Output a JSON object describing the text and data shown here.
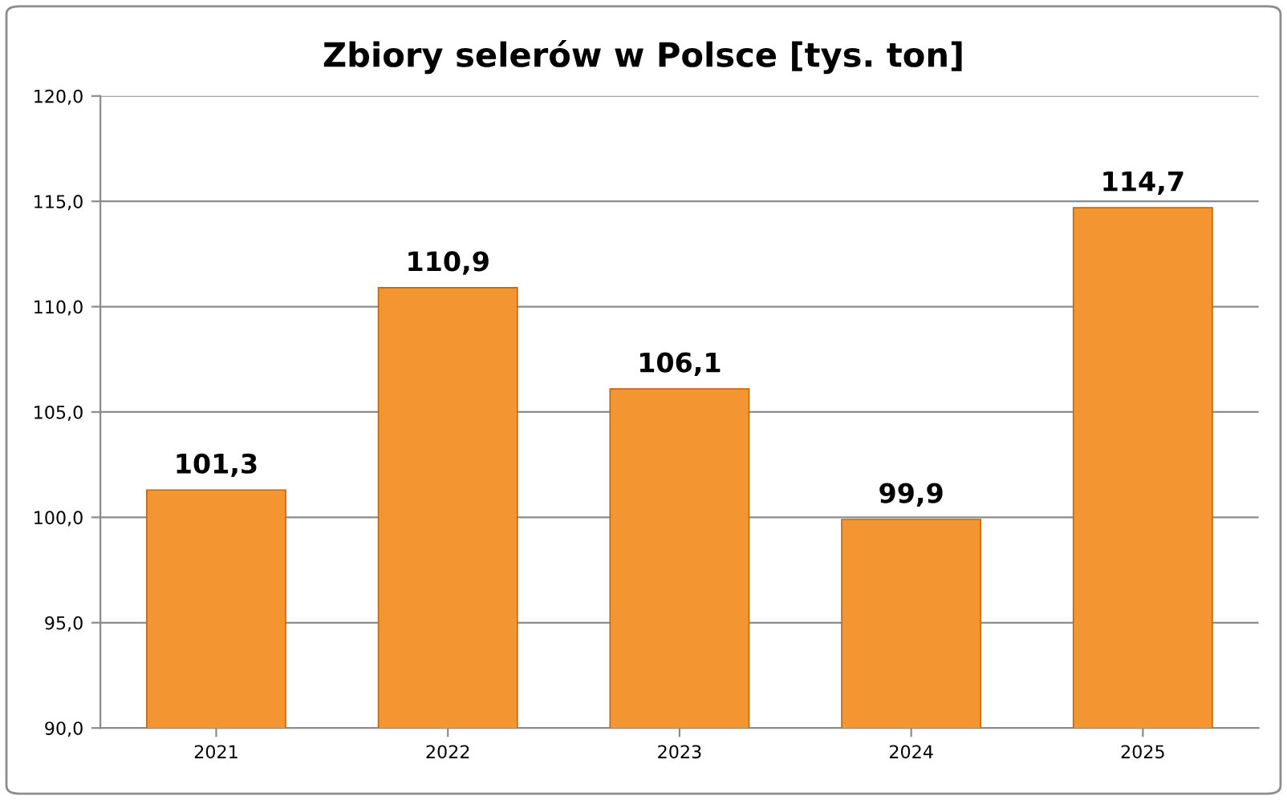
{
  "chart_data": {
    "type": "bar",
    "title": "Zbiory selerów w Polsce [tys. ton]",
    "categories": [
      "2021",
      "2022",
      "2023",
      "2024",
      "2025"
    ],
    "values": [
      101.3,
      110.9,
      106.1,
      99.9,
      114.7
    ],
    "color": "#f39530",
    "value_labels": [
      "101,3",
      "110,9",
      "106,1",
      "99,9",
      "114,7"
    ],
    "ylim": [
      90,
      120
    ],
    "yticks": [
      {
        "value": 90,
        "label": "90,0"
      },
      {
        "value": 95,
        "label": "95,0"
      },
      {
        "value": 100,
        "label": "100,0"
      },
      {
        "value": 105,
        "label": "105,0"
      },
      {
        "value": 110,
        "label": "110,0"
      },
      {
        "value": 115,
        "label": "115,0"
      },
      {
        "value": 120,
        "label": "120,0"
      }
    ],
    "grid": "y",
    "legend": false
  }
}
